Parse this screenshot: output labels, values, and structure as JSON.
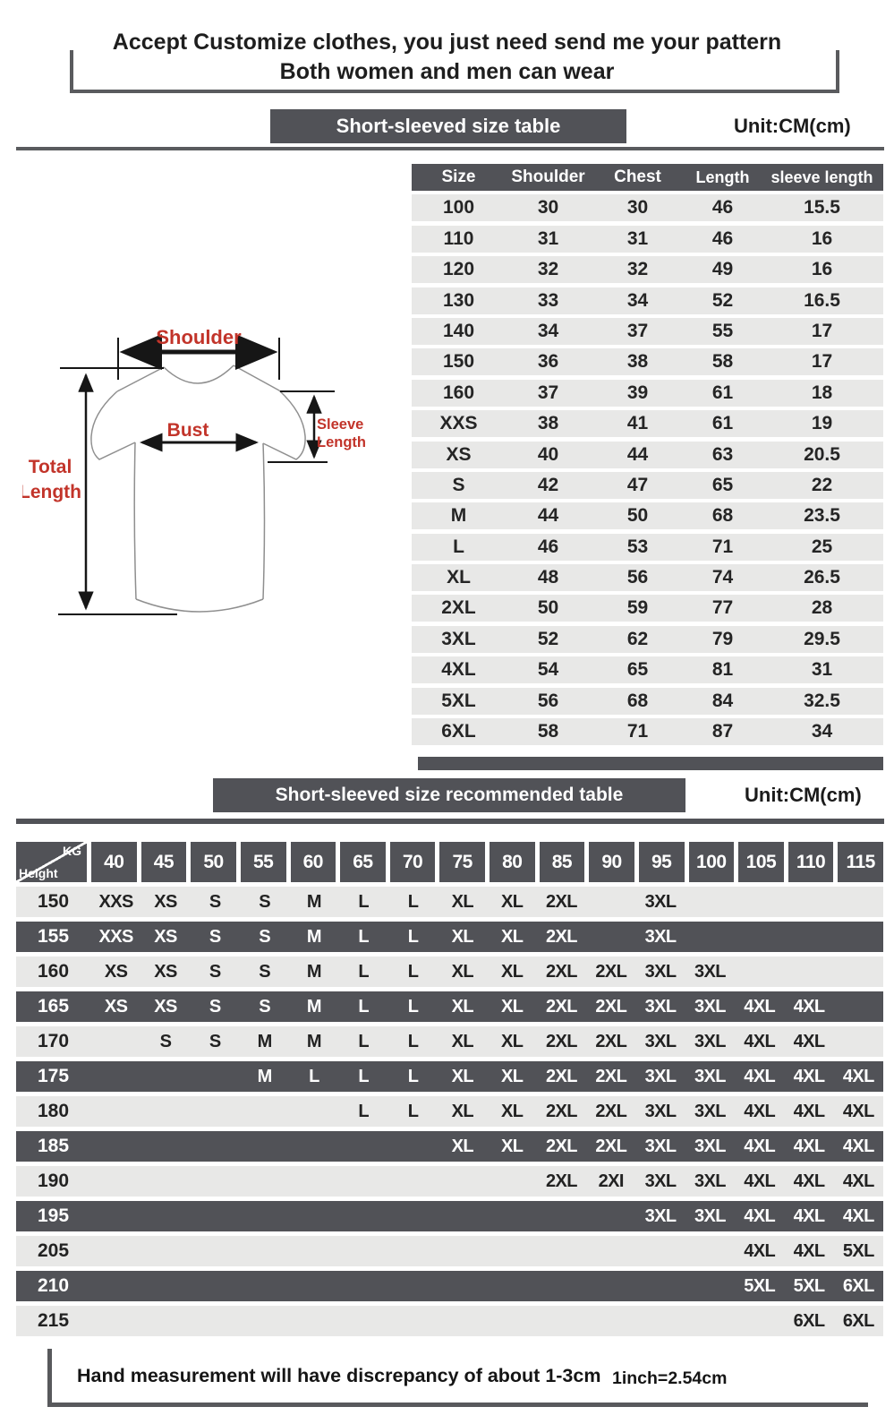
{
  "header": {
    "line1": "Accept Customize clothes, you just need send me your pattern",
    "line2": "Both women and men can wear"
  },
  "section1": {
    "banner": "Short-sleeved size  table",
    "unit": "Unit:CM(cm)"
  },
  "diagram": {
    "shoulder": "Shoulder",
    "bust": "Bust",
    "sleeve1": "Sleeve",
    "sleeve2": "Length",
    "total1": "Total",
    "total2": "Length"
  },
  "size_table": {
    "columns": [
      "Size",
      "Shoulder",
      "Chest",
      "Length",
      "sleeve length"
    ],
    "rows": [
      [
        "100",
        "30",
        "30",
        "46",
        "15.5"
      ],
      [
        "110",
        "31",
        "31",
        "46",
        "16"
      ],
      [
        "120",
        "32",
        "32",
        "49",
        "16"
      ],
      [
        "130",
        "33",
        "34",
        "52",
        "16.5"
      ],
      [
        "140",
        "34",
        "37",
        "55",
        "17"
      ],
      [
        "150",
        "36",
        "38",
        "58",
        "17"
      ],
      [
        "160",
        "37",
        "39",
        "61",
        "18"
      ],
      [
        "XXS",
        "38",
        "41",
        "61",
        "19"
      ],
      [
        "XS",
        "40",
        "44",
        "63",
        "20.5"
      ],
      [
        "S",
        "42",
        "47",
        "65",
        "22"
      ],
      [
        "M",
        "44",
        "50",
        "68",
        "23.5"
      ],
      [
        "L",
        "46",
        "53",
        "71",
        "25"
      ],
      [
        "XL",
        "48",
        "56",
        "74",
        "26.5"
      ],
      [
        "2XL",
        "50",
        "59",
        "77",
        "28"
      ],
      [
        "3XL",
        "52",
        "62",
        "79",
        "29.5"
      ],
      [
        "4XL",
        "54",
        "65",
        "81",
        "31"
      ],
      [
        "5XL",
        "56",
        "68",
        "84",
        "32.5"
      ],
      [
        "6XL",
        "58",
        "71",
        "87",
        "34"
      ]
    ]
  },
  "section2": {
    "banner": "Short-sleeved size recommended table",
    "unit": "Unit:CM(cm)"
  },
  "recommend_table": {
    "corner": {
      "top": "KG",
      "bottom": "Height"
    },
    "weight_columns": [
      "40",
      "45",
      "50",
      "55",
      "60",
      "65",
      "70",
      "75",
      "80",
      "85",
      "90",
      "95",
      "100",
      "105",
      "110",
      "115"
    ],
    "rows": [
      {
        "height": "150",
        "cells": [
          "XXS",
          "XS",
          "S",
          "S",
          "M",
          "L",
          "L",
          "XL",
          "XL",
          "2XL",
          "",
          "3XL",
          "",
          "",
          "",
          ""
        ]
      },
      {
        "height": "155",
        "cells": [
          "XXS",
          "XS",
          "S",
          "S",
          "M",
          "L",
          "L",
          "XL",
          "XL",
          "2XL",
          "",
          "3XL",
          "",
          "",
          "",
          ""
        ]
      },
      {
        "height": "160",
        "cells": [
          "XS",
          "XS",
          "S",
          "S",
          "M",
          "L",
          "L",
          "XL",
          "XL",
          "2XL",
          "2XL",
          "3XL",
          "3XL",
          "",
          "",
          ""
        ]
      },
      {
        "height": "165",
        "cells": [
          "XS",
          "XS",
          "S",
          "S",
          "M",
          "L",
          "L",
          "XL",
          "XL",
          "2XL",
          "2XL",
          "3XL",
          "3XL",
          "4XL",
          "4XL",
          ""
        ]
      },
      {
        "height": "170",
        "cells": [
          "",
          "S",
          "S",
          "M",
          "M",
          "L",
          "L",
          "XL",
          "XL",
          "2XL",
          "2XL",
          "3XL",
          "3XL",
          "4XL",
          "4XL",
          ""
        ]
      },
      {
        "height": "175",
        "cells": [
          "",
          "",
          "",
          "M",
          "L",
          "L",
          "L",
          "XL",
          "XL",
          "2XL",
          "2XL",
          "3XL",
          "3XL",
          "4XL",
          "4XL",
          "4XL"
        ]
      },
      {
        "height": "180",
        "cells": [
          "",
          "",
          "",
          "",
          "",
          "L",
          "L",
          "XL",
          "XL",
          "2XL",
          "2XL",
          "3XL",
          "3XL",
          "4XL",
          "4XL",
          "4XL"
        ]
      },
      {
        "height": "185",
        "cells": [
          "",
          "",
          "",
          "",
          "",
          "",
          "",
          "XL",
          "XL",
          "2XL",
          "2XL",
          "3XL",
          "3XL",
          "4XL",
          "4XL",
          "4XL"
        ]
      },
      {
        "height": "190",
        "cells": [
          "",
          "",
          "",
          "",
          "",
          "",
          "",
          "",
          "",
          "2XL",
          "2XI",
          "3XL",
          "3XL",
          "4XL",
          "4XL",
          "4XL"
        ]
      },
      {
        "height": "195",
        "cells": [
          "",
          "",
          "",
          "",
          "",
          "",
          "",
          "",
          "",
          "",
          "",
          "3XL",
          "3XL",
          "4XL",
          "4XL",
          "4XL"
        ]
      },
      {
        "height": "205",
        "cells": [
          "",
          "",
          "",
          "",
          "",
          "",
          "",
          "",
          "",
          "",
          "",
          "",
          "",
          "4XL",
          "4XL",
          "5XL"
        ]
      },
      {
        "height": "210",
        "cells": [
          "",
          "",
          "",
          "",
          "",
          "",
          "",
          "",
          "",
          "",
          "",
          "",
          "",
          "5XL",
          "5XL",
          "6XL"
        ]
      },
      {
        "height": "215",
        "cells": [
          "",
          "",
          "",
          "",
          "",
          "",
          "",
          "",
          "",
          "",
          "",
          "",
          "",
          "",
          "6XL",
          "6XL"
        ]
      }
    ]
  },
  "footer": {
    "note": "Hand measurement will have discrepancy of about  1-3cm",
    "conversion": "1inch=2.54cm"
  },
  "colors": {
    "dark_gray": "#515257",
    "light_row": "#e8e8e7",
    "accent_red": "#c2342a"
  }
}
